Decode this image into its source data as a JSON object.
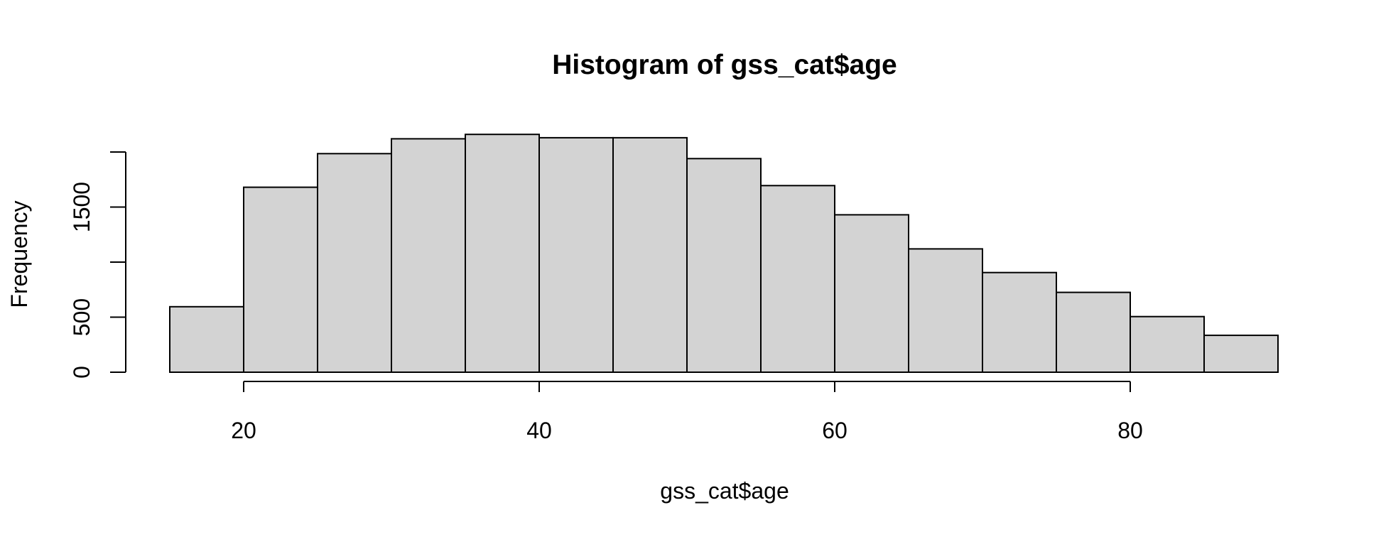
{
  "chart_data": {
    "type": "histogram",
    "title": "Histogram of gss_cat$age",
    "xlabel": "gss_cat$age",
    "ylabel": "Frequency",
    "bins": [
      {
        "from": 15,
        "to": 20,
        "count": 595
      },
      {
        "from": 20,
        "to": 25,
        "count": 1680
      },
      {
        "from": 25,
        "to": 30,
        "count": 1985
      },
      {
        "from": 30,
        "to": 35,
        "count": 2120
      },
      {
        "from": 35,
        "to": 40,
        "count": 2160
      },
      {
        "from": 40,
        "to": 45,
        "count": 2130
      },
      {
        "from": 45,
        "to": 50,
        "count": 2130
      },
      {
        "from": 50,
        "to": 55,
        "count": 1940
      },
      {
        "from": 55,
        "to": 60,
        "count": 1695
      },
      {
        "from": 60,
        "to": 65,
        "count": 1430
      },
      {
        "from": 65,
        "to": 70,
        "count": 1120
      },
      {
        "from": 70,
        "to": 75,
        "count": 905
      },
      {
        "from": 75,
        "to": 80,
        "count": 725
      },
      {
        "from": 80,
        "to": 85,
        "count": 505
      },
      {
        "from": 85,
        "to": 90,
        "count": 335
      }
    ],
    "x_ticks": [
      20,
      40,
      60,
      80
    ],
    "x_tick_labels": [
      "20",
      "40",
      "60",
      "80"
    ],
    "y_ticks": [
      0,
      500,
      1000,
      1500,
      2000
    ],
    "y_tick_labels": [
      "0",
      "500",
      "",
      "1500",
      ""
    ],
    "xlim": [
      15,
      90
    ],
    "ylim": [
      0,
      2000
    ],
    "colors": {
      "bar_fill": "#d3d3d3",
      "bar_stroke": "#000000"
    },
    "grid": false,
    "legend": "none"
  }
}
